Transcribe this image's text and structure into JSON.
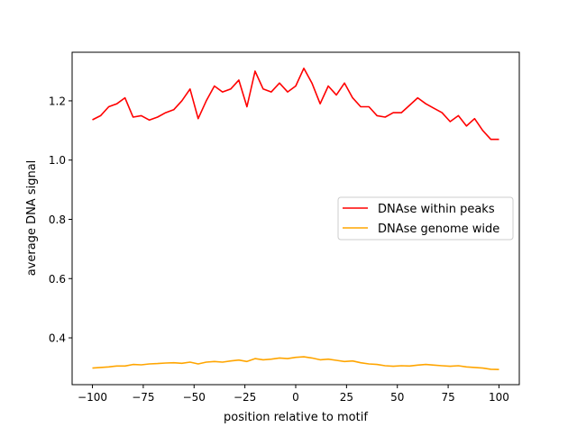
{
  "chart_data": {
    "type": "line",
    "title": "",
    "xlabel": "position relative to motif",
    "ylabel": "average DNA signal",
    "xlim": [
      -110,
      110
    ],
    "ylim": [
      0.242,
      1.364
    ],
    "xticks": [
      -100,
      -75,
      -50,
      -25,
      0,
      25,
      50,
      75,
      100
    ],
    "xtick_labels": [
      "−100",
      "−75",
      "−50",
      "−25",
      "0",
      "25",
      "50",
      "75",
      "100"
    ],
    "yticks": [
      0.4,
      0.6,
      0.8,
      1.0,
      1.2
    ],
    "ytick_labels": [
      "0.4",
      "0.6",
      "0.8",
      "1.0",
      "1.2"
    ],
    "grid": false,
    "legend_position": "center-right",
    "x": [
      -100,
      -96,
      -92,
      -88,
      -84,
      -80,
      -76,
      -72,
      -68,
      -64,
      -60,
      -56,
      -52,
      -48,
      -44,
      -40,
      -36,
      -32,
      -28,
      -24,
      -20,
      -16,
      -12,
      -8,
      -4,
      0,
      4,
      8,
      12,
      16,
      20,
      24,
      28,
      32,
      36,
      40,
      44,
      48,
      52,
      56,
      60,
      64,
      68,
      72,
      76,
      80,
      84,
      88,
      92,
      96,
      100
    ],
    "series": [
      {
        "name": "DNAse within peaks",
        "color": "#ff0000",
        "values": [
          1.136,
          1.15,
          1.18,
          1.19,
          1.21,
          1.145,
          1.15,
          1.135,
          1.145,
          1.16,
          1.17,
          1.2,
          1.24,
          1.14,
          1.2,
          1.25,
          1.23,
          1.24,
          1.27,
          1.18,
          1.3,
          1.24,
          1.23,
          1.26,
          1.23,
          1.25,
          1.31,
          1.26,
          1.19,
          1.25,
          1.22,
          1.26,
          1.21,
          1.18,
          1.18,
          1.15,
          1.145,
          1.16,
          1.16,
          1.185,
          1.21,
          1.19,
          1.175,
          1.16,
          1.13,
          1.15,
          1.115,
          1.14,
          1.1,
          1.07,
          1.07
        ]
      },
      {
        "name": "DNAse genome wide",
        "color": "#ffa500",
        "values": [
          0.298,
          0.3,
          0.302,
          0.305,
          0.305,
          0.31,
          0.309,
          0.312,
          0.313,
          0.315,
          0.316,
          0.314,
          0.318,
          0.312,
          0.318,
          0.32,
          0.318,
          0.322,
          0.325,
          0.32,
          0.33,
          0.326,
          0.328,
          0.332,
          0.33,
          0.334,
          0.336,
          0.332,
          0.326,
          0.328,
          0.324,
          0.32,
          0.322,
          0.316,
          0.312,
          0.31,
          0.306,
          0.304,
          0.306,
          0.305,
          0.308,
          0.31,
          0.308,
          0.306,
          0.304,
          0.306,
          0.302,
          0.3,
          0.298,
          0.294,
          0.293
        ]
      }
    ]
  }
}
